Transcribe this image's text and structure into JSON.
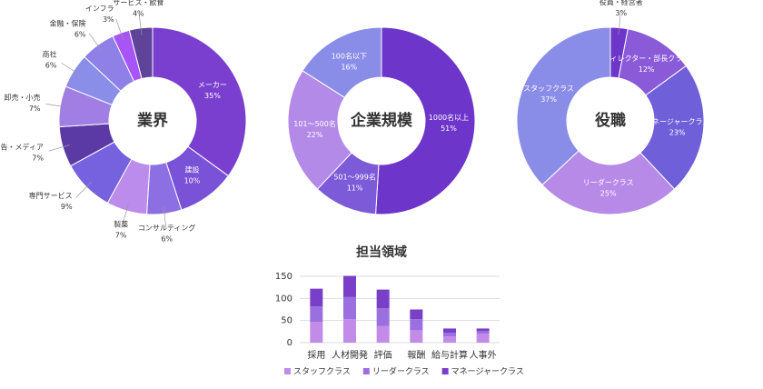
{
  "chart_data": [
    {
      "type": "donut",
      "title": "業界",
      "categories": [
        "メーカー",
        "建設",
        "コンサルティング",
        "製薬",
        "専門サービス",
        "広告・メディア",
        "卸売・小売",
        "商社",
        "金融・保険",
        "インフラ",
        "サービス・飲食"
      ],
      "values": [
        35,
        10,
        6,
        7,
        9,
        7,
        7,
        6,
        6,
        3,
        4
      ],
      "value_labels": [
        "35%",
        "10%",
        "6%",
        "7%",
        "9%",
        "7%",
        "7%",
        "6%",
        "6%",
        "3%",
        "4%"
      ],
      "colors": [
        "#7b3fd0",
        "#7a52d8",
        "#8c6fe2",
        "#bb8ceb",
        "#7661df",
        "#5b3aa6",
        "#a07ee3",
        "#8a8ee8",
        "#8f80e8",
        "#a855f7",
        "#5e4399",
        "#8a8a8a"
      ]
    },
    {
      "type": "donut",
      "title": "企業規模",
      "categories": [
        "1000名以上",
        "501〜999名",
        "101〜500名",
        "100名以下"
      ],
      "values": [
        51,
        11,
        22,
        16
      ],
      "value_labels": [
        "51%",
        "11%",
        "22%",
        "16%"
      ],
      "colors": [
        "#6d35c9",
        "#7d5ad8",
        "#b48ae8",
        "#8a8de8"
      ]
    },
    {
      "type": "donut",
      "title": "役職",
      "categories": [
        "役員・経営者",
        "ディレクター・部長クラス",
        "マネージャークラス",
        "リーダークラス",
        "スタッフクラス"
      ],
      "values": [
        3,
        12,
        23,
        25,
        37
      ],
      "value_labels": [
        "3%",
        "12%",
        "23%",
        "25%",
        "37%"
      ],
      "colors": [
        "#6d35c9",
        "#8a5ad8",
        "#6f5fd8",
        "#b88ae8",
        "#8a8de8"
      ]
    },
    {
      "type": "stacked_bar",
      "title": "担当領域",
      "categories": [
        "採用",
        "人材開発",
        "評価",
        "報酬",
        "給与計算",
        "人事外"
      ],
      "series": [
        {
          "name": "スタッフクラス",
          "color": "#c38be8",
          "values": [
            47,
            53,
            38,
            28,
            14,
            20
          ]
        },
        {
          "name": "リーダークラス",
          "color": "#9a6fe0",
          "values": [
            35,
            50,
            40,
            25,
            8,
            6
          ]
        },
        {
          "name": "マネージャークラス",
          "color": "#7a3fc8",
          "values": [
            40,
            48,
            42,
            22,
            10,
            6
          ]
        }
      ],
      "ylim": [
        0,
        150
      ],
      "yticks": [
        0,
        50,
        100,
        150
      ],
      "grid": true
    }
  ]
}
